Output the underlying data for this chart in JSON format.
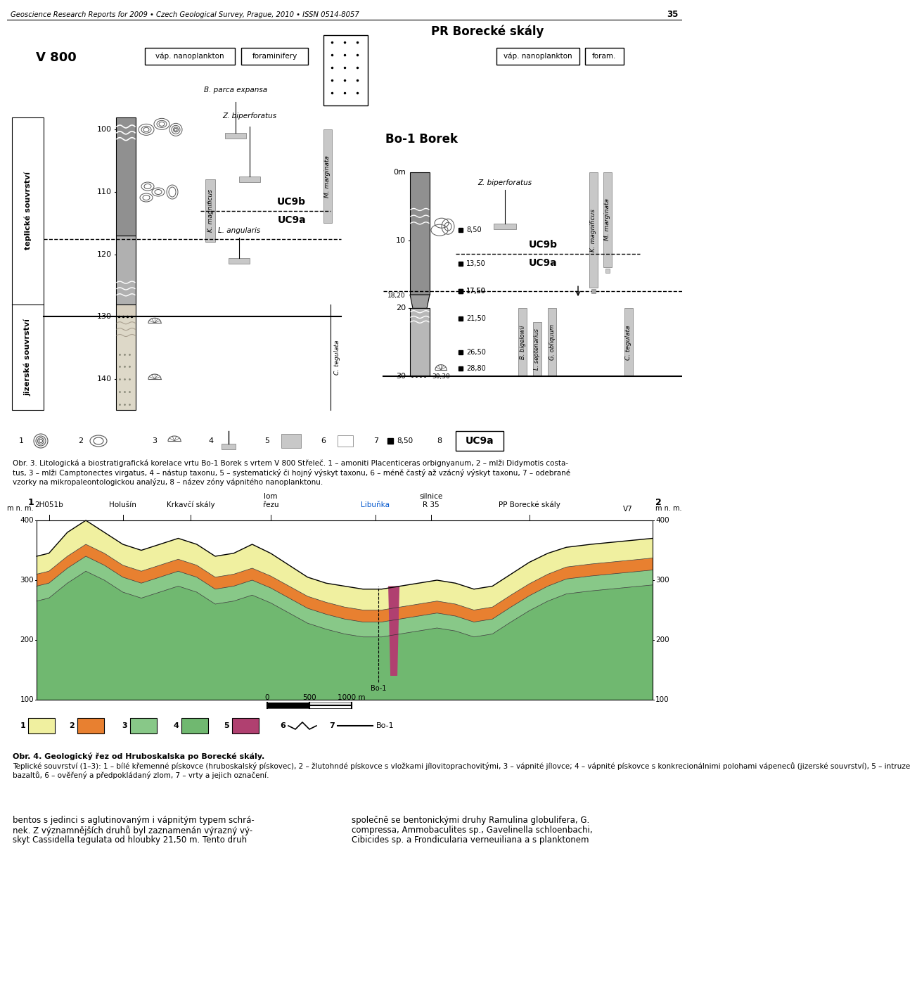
{
  "header_text": "Geoscience Research Reports for 2009 • Czech Geological Survey, Prague, 2010 • ISSN 0514-8057",
  "page_number": "35",
  "pr_title": "PR Borecké skály",
  "v800_label": "V 800",
  "bo1_label": "Bo-1 Borek",
  "vap_nano1": "váp. nanoplankton",
  "foraminifery": "foraminifery",
  "vap_nano2": "váp. nanoplankton",
  "foram2": "foram.",
  "b_parca": "B. parca expansa",
  "z_biperf_v800": "Z. biperforatus",
  "z_biperf_bo1": "Z. biperforatus",
  "l_angularis": "L. angularis",
  "k_magnificus": "K. magnificus",
  "m_marginata": "M. marginata",
  "c_tegulata": "C. tegulata",
  "b_bigelowii": "B. bigelowii",
  "l_septenarius": "L. septenarius",
  "g_obliquum": "G. obliquum",
  "uc9b": "UC9b",
  "uc9a": "UC9a",
  "teplice_label": "teplické souvrství",
  "jizerske_label": "jizerské souvrství",
  "obr3_line1": "Obr. 3. Litologická a biostratigrafická korelace vrtu Bo-1 Borek s vrtem V 800 Střeleč. 1 – amoniti Placenticeras orbignyanum, 2 – mlži Didymotis costa-",
  "obr3_line2": "tus, 3 – mlži Camptonectes virgatus, 4 – nástup taxonu, 5 – systematický či hojný výskyt taxonu, 6 – méně častý až vzácný výskyt taxonu, 7 – odebrané",
  "obr3_line3": "vzorky na mikropaleontologickou analýzu, 8 – název zóny vápnitého nanoplanktonu.",
  "obr4_bold": "Obr. 4. Geologický řez od Hruboskalska po Borecké skály.",
  "obr4_line1": "Teplické souvrství (1–3): 1 – bílé křemenné pískovce (hruboskalský pískovec), 2 – žlutohndé pískovce s vložkami jílovitoprachovitými, 3 – vápnité jílovce; 4 – vápnité pískovce s konkrecionálnimi polohami vápeneců (jizerské souvrství), 5 – intruze",
  "obr4_line2": "bazaltů, 6 – ověřený a předpokládaný zlom, 7 – vrty a jejich označení.",
  "bottom_text1_l1": "bentos s jedinci s aglutinovaným i vápnitým typem schrá-",
  "bottom_text1_l2": "nek. Z významnějších druhů byl zaznamenán výrazný vý-",
  "bottom_text1_l3": "skyt Cassidella tegulata od hloubky 21,50 m. Tento druh",
  "bottom_text2_l1": "společně se bentonickými druhy Ramulina globulifera, G.",
  "bottom_text2_l2": "compressa, Ammobaculites sp., Gavelinella schloenbachi,",
  "bottom_text2_l3": "Cibicides sp. a Frondicularia verneuiliana a s planktonem",
  "bg_color": "#ffffff",
  "col_dark_gray": "#909090",
  "col_med_gray": "#b8b8b8",
  "col_light_gray": "#d0d0d0",
  "col_range_bar": "#c8c8c8",
  "cross_color1": "#f0f0a0",
  "cross_color2": "#e88030",
  "cross_color3": "#88c888",
  "cross_color4": "#70b870",
  "cross_color5": "#b04070",
  "mnm": "m n. m."
}
